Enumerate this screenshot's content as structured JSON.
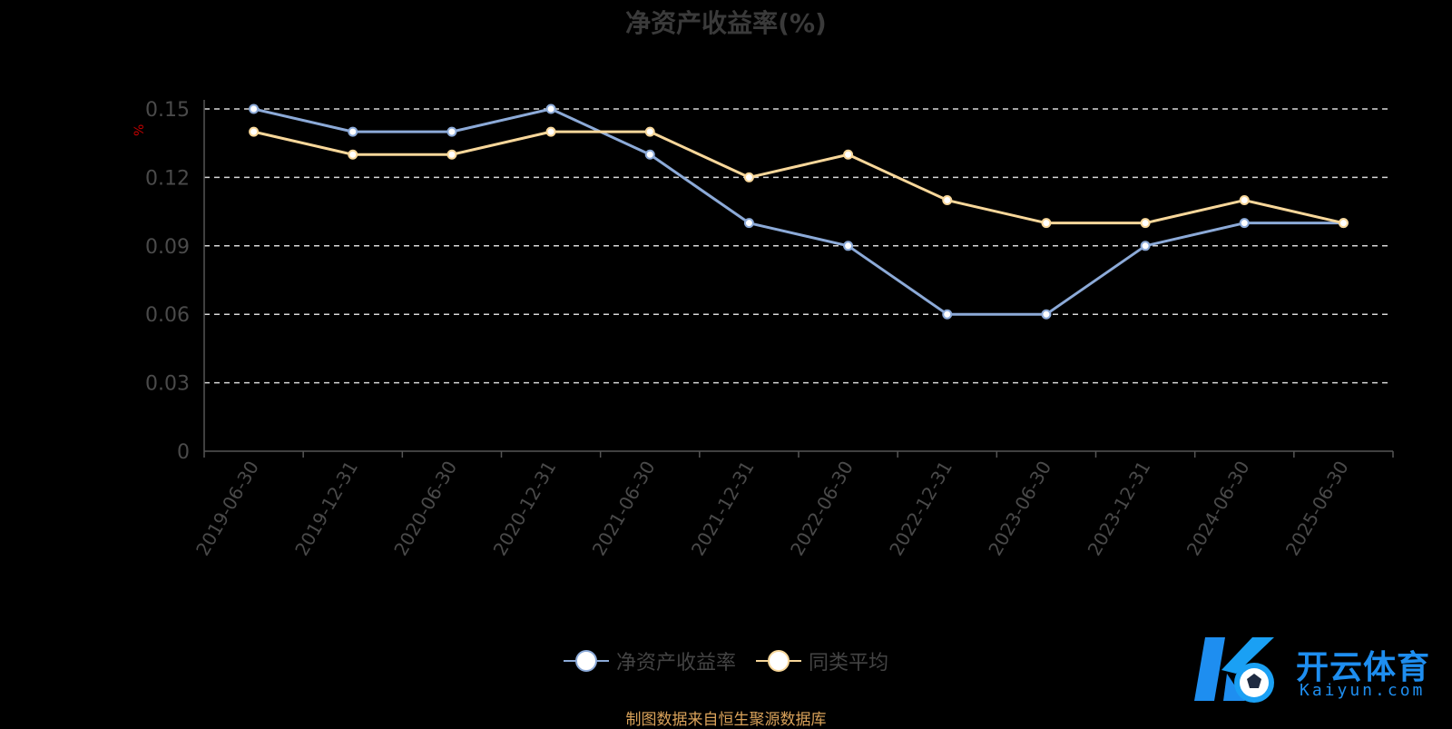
{
  "chart_data": {
    "type": "line",
    "title": "净资产收益率(%)",
    "ylabel": "%",
    "ylim": [
      0,
      0.15
    ],
    "yticks": [
      "0",
      "0.03",
      "0.06",
      "0.09",
      "0.12",
      "0.15"
    ],
    "grid": true,
    "legend": "bottom",
    "categories": [
      "2019-06-30",
      "2019-12-31",
      "2020-06-30",
      "2020-12-31",
      "2021-06-30",
      "2021-12-31",
      "2022-06-30",
      "2022-12-31",
      "2023-06-30",
      "2023-12-31",
      "2024-06-30",
      "2025-06-30"
    ],
    "series": [
      {
        "name": "净资产收益率",
        "color": "#8caad8",
        "values": [
          0.15,
          0.14,
          0.14,
          0.15,
          0.13,
          0.1,
          0.09,
          0.06,
          0.06,
          0.09,
          0.1,
          0.1
        ]
      },
      {
        "name": "同类平均",
        "color": "#f8d79a",
        "values": [
          0.14,
          0.13,
          0.13,
          0.14,
          0.14,
          0.12,
          0.13,
          0.11,
          0.1,
          0.1,
          0.11,
          0.1
        ]
      }
    ]
  },
  "source_note": "制图数据来自恒生聚源数据库",
  "watermark": {
    "cn": "开云体育",
    "en": "Kaiyun.com",
    "color": "#1e8ef0"
  }
}
